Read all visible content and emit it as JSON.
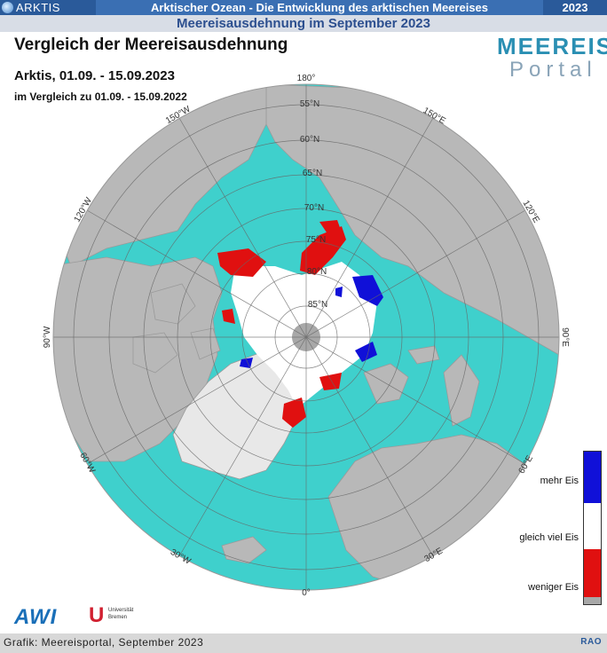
{
  "header": {
    "section": "ARKTIS",
    "title": "Arktischer Ozean - Die Entwicklung des arktischen Meereises",
    "year": "2023",
    "subtitle": "Meereisausdehnung im September 2023"
  },
  "map": {
    "title": "Vergleich der Meereisausdehnung",
    "period": "Arktis, 01.09. - 15.09.2023",
    "comparison": "im Vergleich zu 01.09. - 15.09.2022",
    "projection": "north-polar-stereographic",
    "colors": {
      "ocean": "#3fd0cc",
      "land": "#b8b8b8",
      "ice_same": "#ffffff",
      "ice_more": "#1010d8",
      "ice_less": "#e01010",
      "pole_hole": "#a8a8a8"
    },
    "latitude_labels": [
      "55°N",
      "60°N",
      "65°N",
      "70°N",
      "75°N",
      "80°N",
      "85°N"
    ],
    "longitude_labels": {
      "top": "180°",
      "top_right": "150°E",
      "right_upper": "120°E",
      "right": "90°E",
      "right_lower": "60°E",
      "bottom_right": "30°E",
      "bottom": "0°",
      "bottom_left": "30°W",
      "left_lower": "60°W",
      "left": "90°W",
      "left_upper": "120°W",
      "top_left": "150°W"
    }
  },
  "legend": {
    "more": "mehr Eis",
    "same": "gleich viel Eis",
    "less": "weniger Eis"
  },
  "logos": {
    "portal_line1": "MEEREIS",
    "portal_line2": "Portal",
    "awi": "AWI",
    "uni_bremen": "Universität Bremen"
  },
  "footer": {
    "credit": "Grafik: Meereisportal, September 2023",
    "rao": "RAO"
  }
}
